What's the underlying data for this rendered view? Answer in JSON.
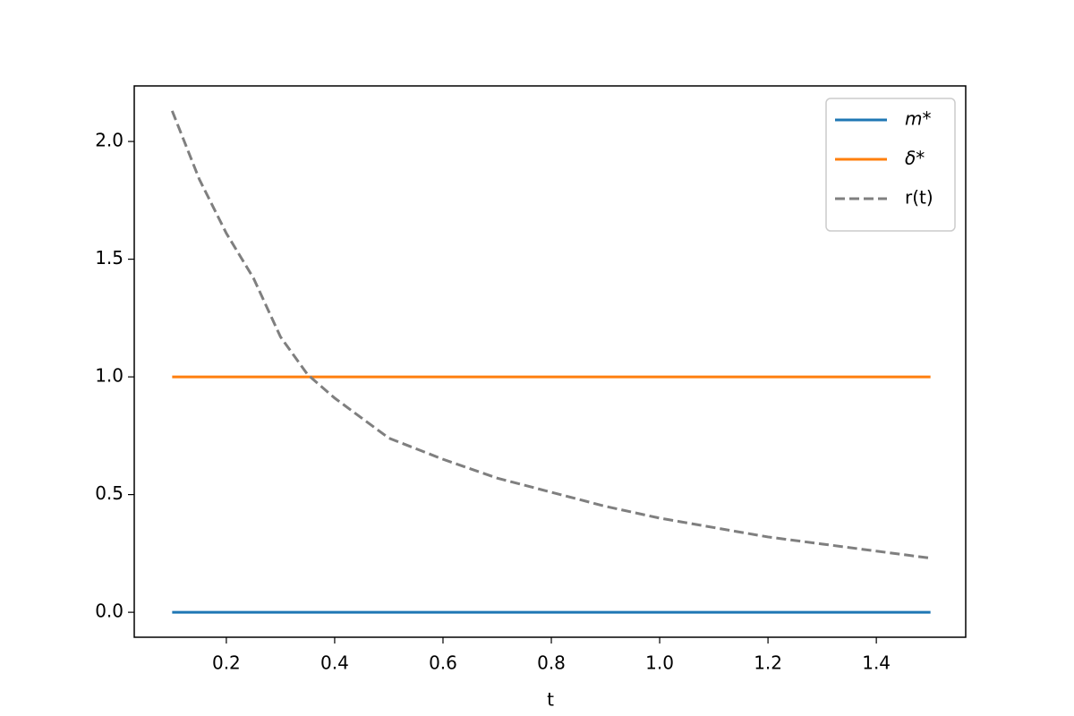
{
  "chart_data": {
    "type": "line",
    "x_label": "t",
    "x": [
      0.1,
      0.15,
      0.2,
      0.25,
      0.3,
      0.35,
      0.4,
      0.5,
      0.6,
      0.7,
      0.8,
      0.9,
      1.0,
      1.1,
      1.2,
      1.3,
      1.4,
      1.5
    ],
    "series": [
      {
        "name": "m*",
        "color": "#1f77b4",
        "style": "solid",
        "values": [
          0,
          0,
          0,
          0,
          0,
          0,
          0,
          0,
          0,
          0,
          0,
          0,
          0,
          0,
          0,
          0,
          0,
          0
        ]
      },
      {
        "name": "δ*",
        "color": "#ff7f0e",
        "style": "solid",
        "values": [
          1,
          1,
          1,
          1,
          1,
          1,
          1,
          1,
          1,
          1,
          1,
          1,
          1,
          1,
          1,
          1,
          1,
          1
        ]
      },
      {
        "name": "r(t)",
        "color": "#7f7f7f",
        "style": "dashed",
        "values": [
          2.13,
          1.84,
          1.61,
          1.42,
          1.17,
          1.01,
          0.91,
          0.74,
          0.65,
          0.57,
          0.51,
          0.45,
          0.4,
          0.36,
          0.32,
          0.29,
          0.26,
          0.23
        ]
      }
    ],
    "xlim": [
      0.03,
      1.565
    ],
    "ylim": [
      -0.106,
      2.236
    ],
    "xticks": [
      0.2,
      0.4,
      0.6,
      0.8,
      {
        "value": 1.0,
        "label": "1.0"
      },
      1.2,
      1.4
    ],
    "yticks": [
      {
        "value": 0,
        "label": "0.0"
      },
      0.5,
      {
        "value": 1,
        "label": "1.0"
      },
      1.5,
      {
        "value": 2,
        "label": "2.0"
      }
    ],
    "legend": "upper right",
    "grid": false
  }
}
